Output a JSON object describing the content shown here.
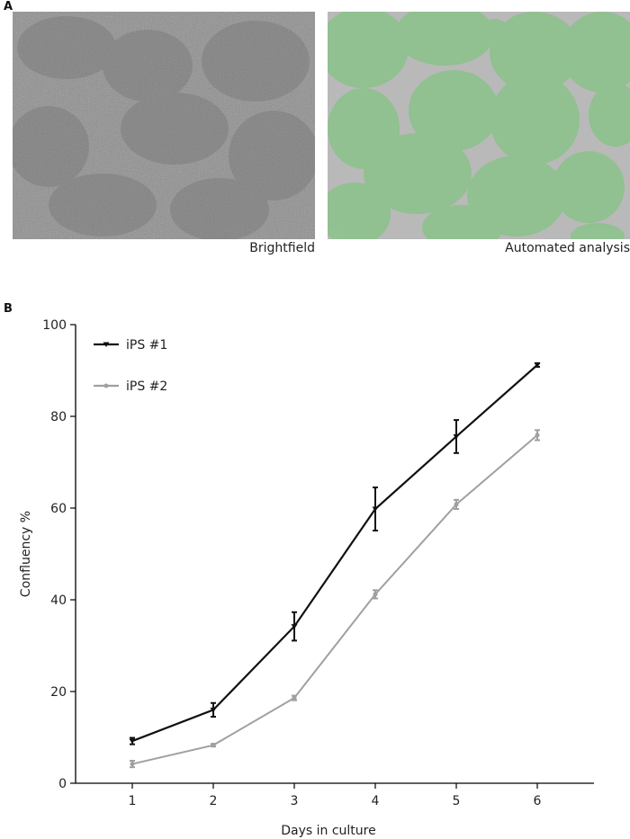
{
  "panels": {
    "a_label": "A",
    "b_label": "B",
    "brightfield_caption": "Brightfield",
    "analysis_caption": "Automated analysis"
  },
  "colors": {
    "confluent_overlay": "#8fc18f",
    "background_gray": "#b8b8b8",
    "series1": "#111111",
    "series2": "#a0a0a0"
  },
  "chart_data": {
    "type": "line",
    "xlabel": "Days in culture",
    "ylabel": "Confluency %",
    "x": [
      1,
      2,
      3,
      4,
      5,
      6
    ],
    "xlim": [
      0.3,
      6.7
    ],
    "ylim": [
      0,
      100
    ],
    "yticks": [
      0,
      20,
      40,
      60,
      80,
      100
    ],
    "xticks": [
      1,
      2,
      3,
      4,
      5,
      6
    ],
    "legend_placement": "top-left",
    "grid": false,
    "series": [
      {
        "name": "iPS #1",
        "values": [
          9.2,
          16,
          34.2,
          59.8,
          75.6,
          91.2
        ],
        "errors": [
          0.7,
          1.5,
          3.1,
          4.7,
          3.6,
          0.4
        ],
        "color": "#111111"
      },
      {
        "name": "iPS #2",
        "values": [
          4.2,
          8.3,
          18.6,
          41.2,
          60.8,
          75.9
        ],
        "errors": [
          0.7,
          0.3,
          0.5,
          0.9,
          1.0,
          1.1
        ],
        "color": "#a0a0a0"
      }
    ]
  }
}
